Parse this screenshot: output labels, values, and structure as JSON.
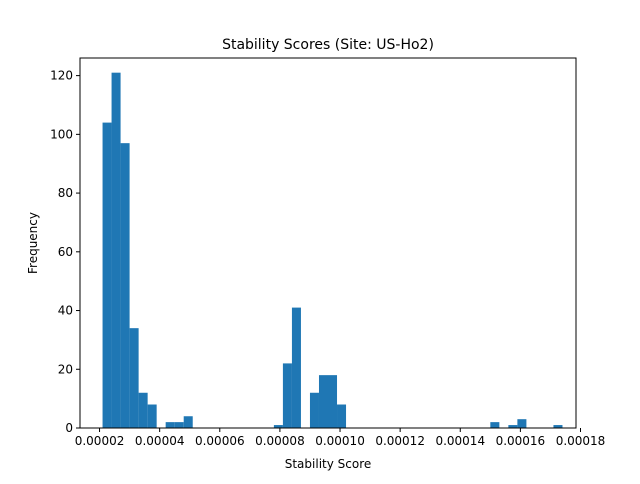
{
  "chart_data": {
    "type": "bar",
    "title": "Stability Scores (Site: US-Ho2)",
    "xlabel": "Stability Score",
    "ylabel": "Frequency",
    "xlim": [
      1.35e-05,
      0.0001785
    ],
    "ylim": [
      0,
      126
    ],
    "x_ticks": [
      {
        "value": 2e-05,
        "label": "0.00002"
      },
      {
        "value": 4e-05,
        "label": "0.00004"
      },
      {
        "value": 6e-05,
        "label": "0.00006"
      },
      {
        "value": 8e-05,
        "label": "0.00008"
      },
      {
        "value": 0.0001,
        "label": "0.00010"
      },
      {
        "value": 0.00012,
        "label": "0.00012"
      },
      {
        "value": 0.00014,
        "label": "0.00014"
      },
      {
        "value": 0.00016,
        "label": "0.00016"
      },
      {
        "value": 0.00018,
        "label": "0.00018"
      }
    ],
    "y_ticks": [
      {
        "value": 0,
        "label": "0"
      },
      {
        "value": 20,
        "label": "20"
      },
      {
        "value": 40,
        "label": "40"
      },
      {
        "value": 60,
        "label": "60"
      },
      {
        "value": 80,
        "label": "80"
      },
      {
        "value": 100,
        "label": "100"
      },
      {
        "value": 120,
        "label": "120"
      }
    ],
    "bin_start": 2.1e-05,
    "bin_width": 3e-06,
    "counts": [
      104,
      121,
      97,
      34,
      12,
      8,
      0,
      2,
      2,
      4,
      0,
      0,
      0,
      0,
      0,
      0,
      0,
      0,
      0,
      1,
      22,
      41,
      0,
      12,
      18,
      18,
      8,
      0,
      0,
      0,
      0,
      0,
      0,
      0,
      0,
      0,
      0,
      0,
      0,
      0,
      0,
      0,
      0,
      2,
      0,
      1,
      3,
      0,
      0,
      0,
      1
    ],
    "bar_color": "#1f77b4",
    "grid": false,
    "legend": "none"
  }
}
